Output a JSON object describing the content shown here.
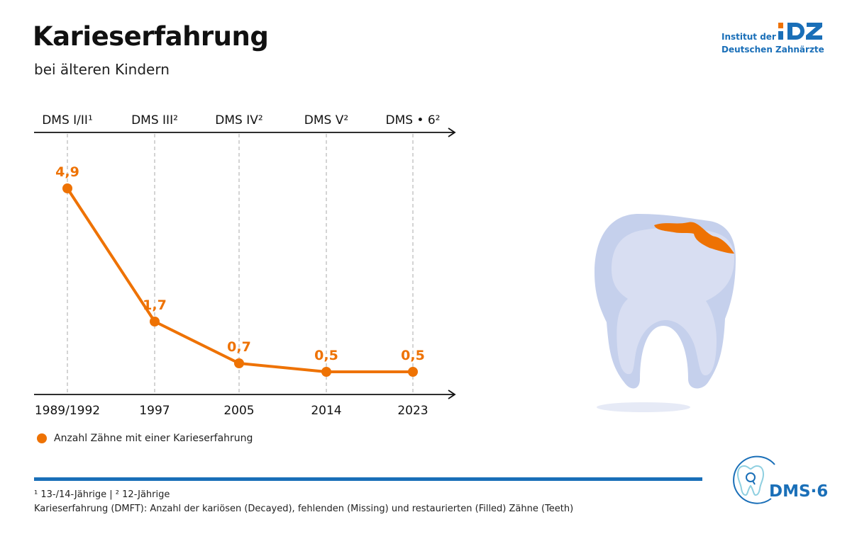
{
  "header": {
    "title": "Karieserfahrung",
    "subtitle": "bei älteren Kindern"
  },
  "logo": {
    "line1": "Institut der",
    "line2": "Deutschen Zahnärzte",
    "mark": "IDZ",
    "icon": "idz-logo-icon"
  },
  "chart_data": {
    "type": "line",
    "title": "Karieserfahrung",
    "subtitle": "bei älteren Kindern",
    "categories": [
      "1989/1992",
      "1997",
      "2005",
      "2014",
      "2023"
    ],
    "top_labels": [
      "DMS I/II¹",
      "DMS III²",
      "DMS IV²",
      "DMS V²",
      "DMS • 6²"
    ],
    "series": [
      {
        "name": "Anzahl Zähne mit einer Karieserfahrung",
        "values": [
          4.9,
          1.7,
          0.7,
          0.5,
          0.5
        ],
        "labels": [
          "4,9",
          "1,7",
          "0,7",
          "0,5",
          "0,5"
        ],
        "color": "#ee7203"
      }
    ],
    "xlabel": "",
    "ylabel": "",
    "ylim": [
      0,
      5.6
    ],
    "grid": "vertical-dashed",
    "legend": "bottom-left"
  },
  "legend": {
    "label": "Anzahl Zähne mit einer Karieserfahrung"
  },
  "footnotes": {
    "line1": "¹ 13-/14-Jährige | ² 12-Jährige",
    "line2": "Karieserfahrung (DMFT): Anzahl der kariösen (Decayed), fehlenden (Missing) und restaurierten (Filled) Zähne (Teeth)"
  },
  "dms_logo": {
    "text": "DMS·6",
    "icon": "tooth-magnifier-icon"
  },
  "illustration": {
    "icon": "decayed-tooth-icon"
  },
  "colors": {
    "accent": "#ee7203",
    "brand_blue": "#1a6fb8",
    "tooth_light": "#d8def2",
    "tooth_shadow": "#c5d0ec"
  }
}
